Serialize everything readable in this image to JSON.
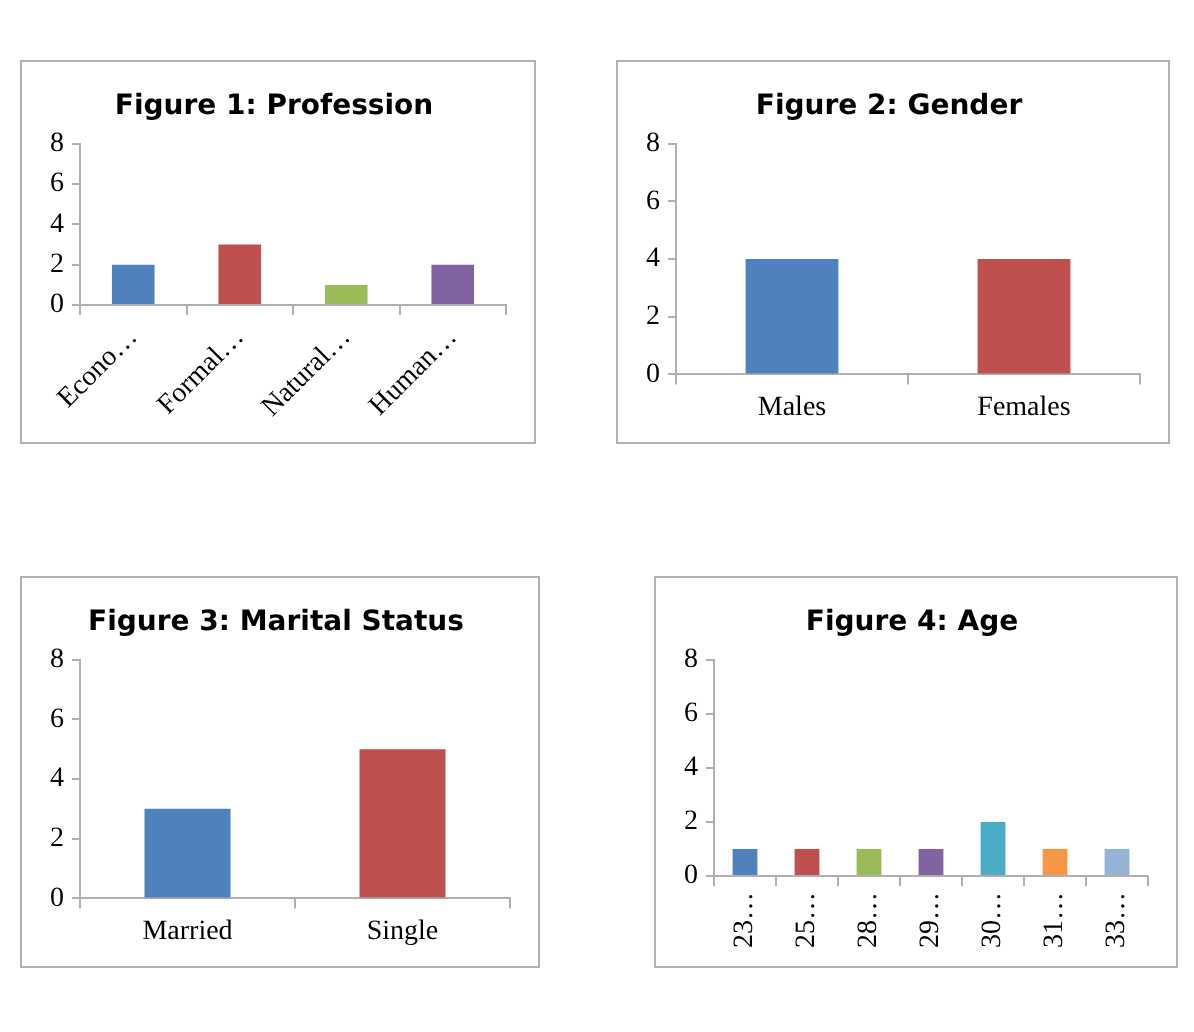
{
  "chart_data": [
    {
      "type": "bar",
      "title": "Figure 1: Profession",
      "categories": [
        "Econo…",
        "Formal…",
        "Natural…",
        "Human…"
      ],
      "values": [
        2,
        3,
        1,
        2
      ],
      "colors": [
        "#4f81bd",
        "#c0504d",
        "#9bbb59",
        "#8064a2"
      ],
      "ylim": [
        0,
        8
      ],
      "yticks": [
        0,
        2,
        4,
        6,
        8
      ],
      "grid": false
    },
    {
      "type": "bar",
      "title": "Figure 2: Gender",
      "categories": [
        "Males",
        "Females"
      ],
      "values": [
        4,
        4
      ],
      "colors": [
        "#4f81bd",
        "#c0504d"
      ],
      "ylim": [
        0,
        8
      ],
      "yticks": [
        0,
        2,
        4,
        6,
        8
      ],
      "grid": false
    },
    {
      "type": "bar",
      "title": "Figure 3: Marital Status",
      "categories": [
        "Married",
        "Single"
      ],
      "values": [
        3,
        5
      ],
      "colors": [
        "#4f81bd",
        "#c0504d"
      ],
      "ylim": [
        0,
        8
      ],
      "yticks": [
        0,
        2,
        4,
        6,
        8
      ],
      "grid": false
    },
    {
      "type": "bar",
      "title": "Figure 4: Age",
      "categories": [
        "23…",
        "25…",
        "28…",
        "29…",
        "30…",
        "31…",
        "33…"
      ],
      "values": [
        1,
        1,
        1,
        1,
        2,
        1,
        1
      ],
      "colors": [
        "#4f81bd",
        "#c0504d",
        "#9bbb59",
        "#8064a2",
        "#4bacc6",
        "#f79646",
        "#95b3d7"
      ],
      "ylim": [
        0,
        8
      ],
      "yticks": [
        0,
        2,
        4,
        6,
        8
      ],
      "grid": false
    }
  ]
}
